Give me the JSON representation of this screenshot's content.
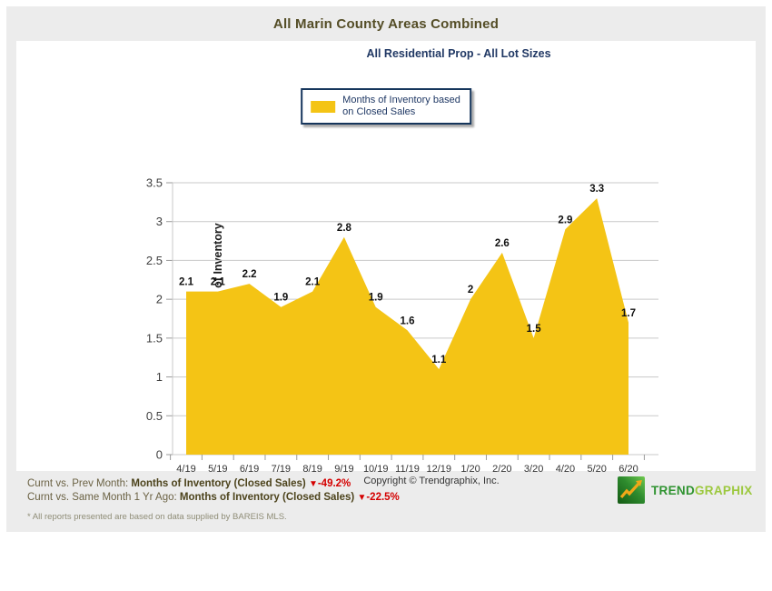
{
  "title": "All Marin County Areas Combined",
  "subtitle": "All Residential Prop - All Lot Sizes",
  "legend": {
    "line1": "Months of Inventory based",
    "line2": "on Closed Sales"
  },
  "chart_data": {
    "type": "area",
    "title": "All Residential Prop - All Lot Sizes",
    "series_name": "Months of Inventory based on Closed Sales",
    "categories": [
      "4/19",
      "5/19",
      "6/19",
      "7/19",
      "8/19",
      "9/19",
      "10/19",
      "11/19",
      "12/19",
      "1/20",
      "2/20",
      "3/20",
      "4/20",
      "5/20",
      "6/20"
    ],
    "values": [
      2.1,
      2.1,
      2.2,
      1.9,
      2.1,
      2.8,
      1.9,
      1.6,
      1.1,
      2,
      2.6,
      1.5,
      2.9,
      3.3,
      1.7
    ],
    "xlabel": "",
    "ylabel": "Months of Inventory",
    "ylim": [
      0,
      3.5
    ],
    "yticks": [
      0,
      0.5,
      1,
      1.5,
      2,
      2.5,
      3,
      3.5
    ],
    "grid": true,
    "legend_position": "top-center",
    "area_color": "#f4c415",
    "gridline_color": "#c9c9c9",
    "tick_label_color": "#404040",
    "data_label_color": "#111111"
  },
  "copyright": "Copyright © Trendgraphix, Inc.",
  "stats": {
    "0": {
      "label": "Curnt vs. Prev Month: ",
      "metric": "Months of Inventory (Closed Sales) ",
      "arrow": "▼",
      "change": "-49.2%"
    },
    "1": {
      "label": "Curnt vs. Same Month 1 Yr Ago: ",
      "metric": "Months of Inventory (Closed Sales) ",
      "arrow": "▼",
      "change": "-22.5%"
    }
  },
  "footnote": "* All reports presented are based on data supplied by BAREIS MLS.",
  "logo": {
    "trend": "TREND",
    "graphix": "GRAPHIX"
  },
  "colors": {
    "panel_bg": "#ececec",
    "title_text": "#544d26",
    "subtitle_text": "#203864",
    "legend_border": "#16365c",
    "negative_red": "#d40000",
    "logo_dark_green": "#2f9330",
    "logo_light_green": "#9cc83e"
  }
}
